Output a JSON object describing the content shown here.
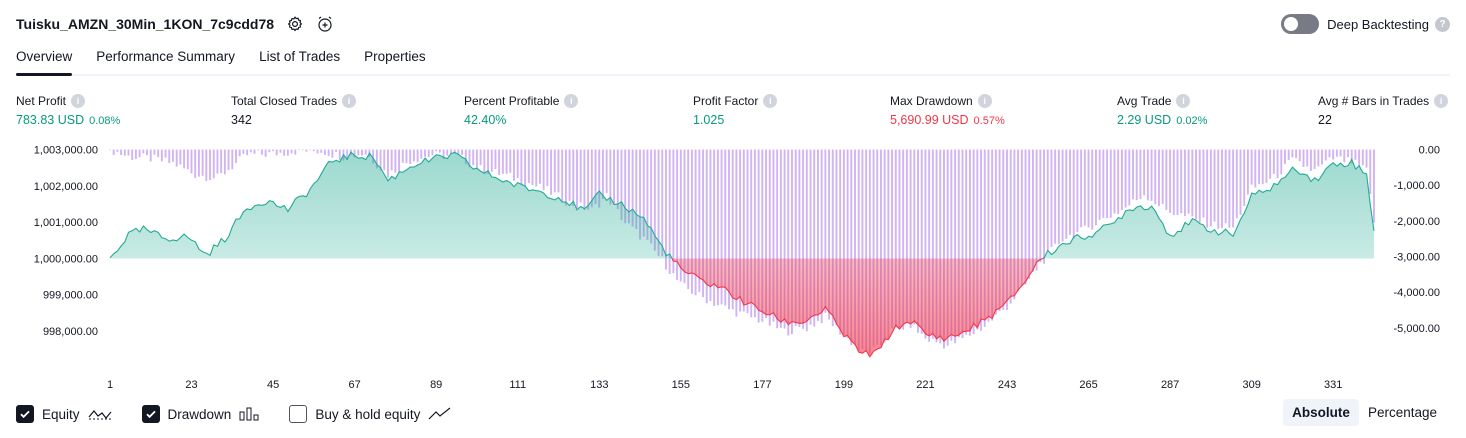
{
  "header": {
    "strategy_name": "Tuisku_AMZN_30Min_1KON_7c9cdd78",
    "settings_icon": "gear-icon",
    "alert_icon": "alarm-clock-plus-icon"
  },
  "deep_backtesting": {
    "label": "Deep Backtesting",
    "enabled": false,
    "help": "?"
  },
  "tabs": [
    {
      "label": "Overview",
      "active": true
    },
    {
      "label": "Performance Summary",
      "active": false
    },
    {
      "label": "List of Trades",
      "active": false
    },
    {
      "label": "Properties",
      "active": false
    }
  ],
  "stats": {
    "info_glyph": "i",
    "net_profit": {
      "label": "Net Profit",
      "value": "783.83 USD",
      "pct": "0.08%"
    },
    "total_closed_trades": {
      "label": "Total Closed Trades",
      "value": "342"
    },
    "percent_profitable": {
      "label": "Percent Profitable",
      "value": "42.40%"
    },
    "profit_factor": {
      "label": "Profit Factor",
      "value": "1.025"
    },
    "max_drawdown": {
      "label": "Max Drawdown",
      "value": "5,690.99 USD",
      "pct": "0.57%"
    },
    "avg_trade": {
      "label": "Avg Trade",
      "value": "2.29 USD",
      "pct": "0.02%"
    },
    "avg_bars": {
      "label": "Avg # Bars in Trades",
      "value": "22"
    }
  },
  "colors": {
    "profit": "#089981",
    "loss": "#f23645",
    "equity_line": "#22ab94",
    "drawdown_bar": "#c9a6f2"
  },
  "chart_data": {
    "type": "area",
    "left_axis": {
      "ticks": [
        "1,003,000.00",
        "1,002,000.00",
        "1,001,000.00",
        "1,000,000.00",
        "999,000.00",
        "998,000.00"
      ],
      "tick_values": [
        1003000,
        1002000,
        1001000,
        1000000,
        999000,
        998000
      ],
      "range": [
        997200,
        1003100
      ]
    },
    "right_axis": {
      "ticks": [
        "0.00",
        "-1,000.00",
        "-2,000.00",
        "-3,000.00",
        "-4,000.00",
        "-5,000.00"
      ],
      "tick_values": [
        0,
        -1000,
        -2000,
        -3000,
        -4000,
        -5000
      ],
      "range": [
        -5900,
        100
      ]
    },
    "x_ticks": [
      "1",
      "23",
      "45",
      "67",
      "89",
      "111",
      "133",
      "155",
      "177",
      "199",
      "221",
      "243",
      "265",
      "287",
      "309",
      "331"
    ],
    "x_range": [
      1,
      342
    ],
    "baseline": 1000000,
    "series": [
      {
        "name": "Equity",
        "anchors": [
          [
            1,
            1000000
          ],
          [
            6,
            1000650
          ],
          [
            10,
            1000800
          ],
          [
            16,
            1000550
          ],
          [
            22,
            1000600
          ],
          [
            27,
            1000100
          ],
          [
            32,
            1000550
          ],
          [
            38,
            1001400
          ],
          [
            43,
            1001600
          ],
          [
            49,
            1001350
          ],
          [
            55,
            1001900
          ],
          [
            61,
            1002700
          ],
          [
            67,
            1002850
          ],
          [
            72,
            1002800
          ],
          [
            76,
            1002150
          ],
          [
            83,
            1002600
          ],
          [
            89,
            1002750
          ],
          [
            94,
            1002850
          ],
          [
            100,
            1002450
          ],
          [
            106,
            1002200
          ],
          [
            111,
            1002000
          ],
          [
            117,
            1001850
          ],
          [
            123,
            1001650
          ],
          [
            129,
            1001300
          ],
          [
            133,
            1001750
          ],
          [
            139,
            1001500
          ],
          [
            145,
            1001100
          ],
          [
            150,
            1000300
          ],
          [
            155,
            999700
          ],
          [
            160,
            999400
          ],
          [
            166,
            999200
          ],
          [
            171,
            998850
          ],
          [
            177,
            998550
          ],
          [
            183,
            998250
          ],
          [
            188,
            998250
          ],
          [
            194,
            998600
          ],
          [
            199,
            997900
          ],
          [
            204,
            997350
          ],
          [
            208,
            997400
          ],
          [
            212,
            998000
          ],
          [
            217,
            998300
          ],
          [
            221,
            997900
          ],
          [
            227,
            997800
          ],
          [
            232,
            998000
          ],
          [
            237,
            998300
          ],
          [
            243,
            998750
          ],
          [
            248,
            999400
          ],
          [
            252,
            1000000
          ],
          [
            259,
            1000450
          ],
          [
            265,
            1000650
          ],
          [
            271,
            1000900
          ],
          [
            276,
            1001400
          ],
          [
            282,
            1001450
          ],
          [
            287,
            1000650
          ],
          [
            293,
            1001000
          ],
          [
            298,
            1000800
          ],
          [
            304,
            1000650
          ],
          [
            309,
            1001700
          ],
          [
            315,
            1002000
          ],
          [
            321,
            1002500
          ],
          [
            326,
            1002150
          ],
          [
            331,
            1002600
          ],
          [
            336,
            1002650
          ],
          [
            340,
            1002300
          ],
          [
            342,
            1000800
          ]
        ]
      },
      {
        "name": "Drawdown",
        "anchors": [
          [
            1,
            0
          ],
          [
            6,
            -200
          ],
          [
            12,
            -250
          ],
          [
            18,
            -380
          ],
          [
            24,
            -700
          ],
          [
            30,
            -800
          ],
          [
            38,
            -150
          ],
          [
            45,
            -120
          ],
          [
            52,
            -30
          ],
          [
            58,
            -40
          ],
          [
            64,
            -200
          ],
          [
            70,
            -110
          ],
          [
            76,
            -700
          ],
          [
            82,
            -300
          ],
          [
            88,
            -150
          ],
          [
            95,
            -200
          ],
          [
            101,
            -550
          ],
          [
            107,
            -700
          ],
          [
            113,
            -900
          ],
          [
            119,
            -1150
          ],
          [
            125,
            -1500
          ],
          [
            131,
            -1700
          ],
          [
            135,
            -1300
          ],
          [
            140,
            -2050
          ],
          [
            145,
            -2500
          ],
          [
            150,
            -3100
          ],
          [
            155,
            -3800
          ],
          [
            160,
            -4100
          ],
          [
            166,
            -4400
          ],
          [
            171,
            -4600
          ],
          [
            177,
            -4800
          ],
          [
            183,
            -5100
          ],
          [
            189,
            -5000
          ],
          [
            194,
            -4700
          ],
          [
            199,
            -5200
          ],
          [
            204,
            -5690
          ],
          [
            208,
            -5600
          ],
          [
            212,
            -5100
          ],
          [
            217,
            -4900
          ],
          [
            221,
            -5300
          ],
          [
            227,
            -5500
          ],
          [
            232,
            -5250
          ],
          [
            237,
            -4950
          ],
          [
            243,
            -4400
          ],
          [
            248,
            -3800
          ],
          [
            252,
            -3200
          ],
          [
            258,
            -2500
          ],
          [
            263,
            -2300
          ],
          [
            268,
            -2000
          ],
          [
            274,
            -1700
          ],
          [
            280,
            -1250
          ],
          [
            286,
            -1700
          ],
          [
            292,
            -1900
          ],
          [
            298,
            -2100
          ],
          [
            304,
            -2200
          ],
          [
            309,
            -1100
          ],
          [
            315,
            -800
          ],
          [
            320,
            -300
          ],
          [
            326,
            -600
          ],
          [
            331,
            -250
          ],
          [
            336,
            -350
          ],
          [
            340,
            -600
          ],
          [
            342,
            -2000
          ]
        ]
      }
    ]
  },
  "footer": {
    "checkboxes": [
      {
        "label": "Equity",
        "checked": true,
        "icon": "equity-line-icon"
      },
      {
        "label": "Drawdown",
        "checked": true,
        "icon": "drawdown-bars-icon"
      },
      {
        "label": "Buy & hold equity",
        "checked": false,
        "icon": "buy-hold-line-icon"
      }
    ],
    "scale_options": [
      {
        "label": "Absolute",
        "active": true
      },
      {
        "label": "Percentage",
        "active": false
      }
    ]
  }
}
